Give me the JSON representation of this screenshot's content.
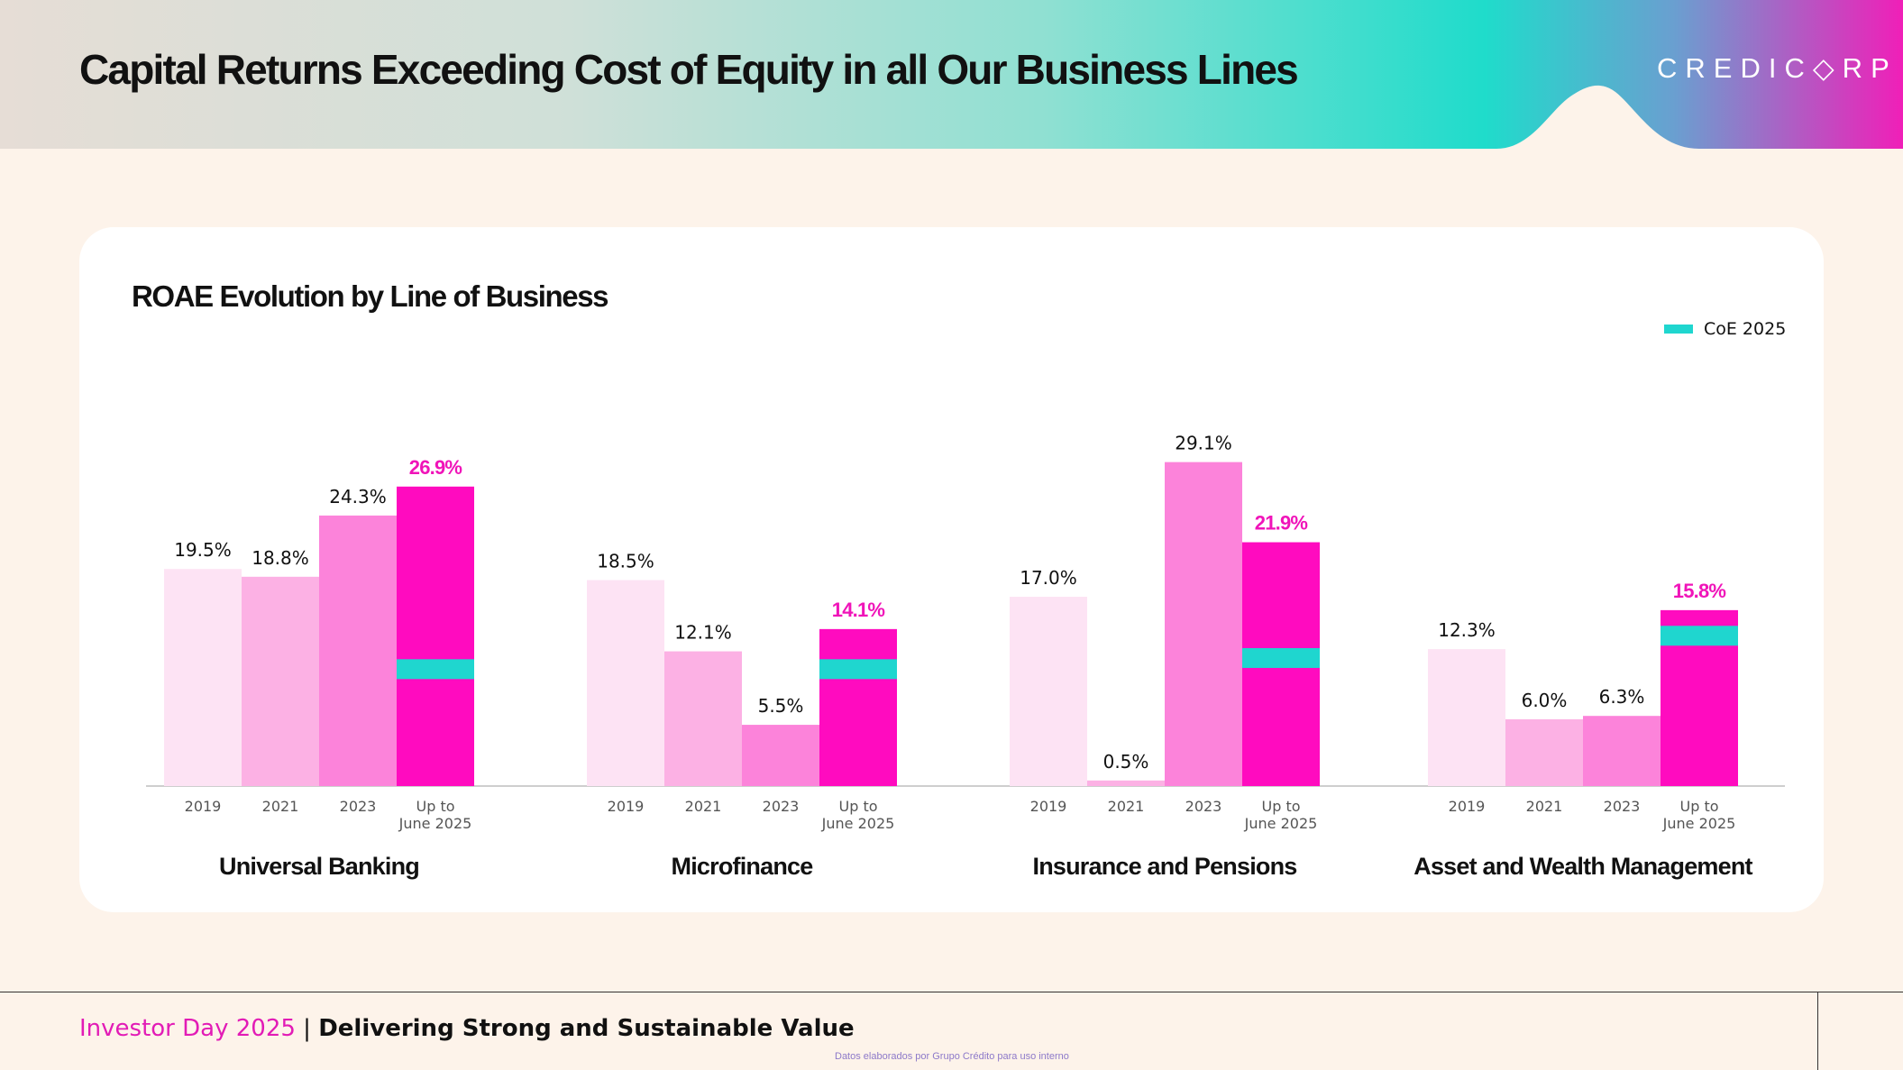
{
  "header": {
    "title": "Capital Returns Exceeding Cost of Equity in all Our Business Lines",
    "logo": "CREDIC◇RP"
  },
  "footer": {
    "event": "Investor Day 2025",
    "separator": " | ",
    "tagline": "Delivering Strong and Sustainable Value",
    "note": "Datos elaborados por Grupo Crédito para uso interno"
  },
  "colors": {
    "y2019": "#fde3f4",
    "y2021": "#fcb1e4",
    "y2023": "#fc83da",
    "y2025": "#ff0bbf",
    "coe": "#1fd6cf",
    "highlight_label": "#f014b9",
    "header_pink": "#f01fb8"
  },
  "chart_data": {
    "type": "bar",
    "title": "ROAE Evolution by Line of Business",
    "legend": {
      "label": "CoE 2025",
      "position": "top-right"
    },
    "categories": [
      "2019",
      "2021",
      "2023",
      "Up to\nJune 2025"
    ],
    "ylim": [
      0,
      30
    ],
    "groups": [
      {
        "name": "Universal Banking",
        "values": [
          19.5,
          18.8,
          24.3,
          26.9
        ],
        "labels": [
          "19.5%",
          "18.8%",
          "24.3%",
          "26.9%"
        ],
        "coe": 10.5
      },
      {
        "name": "Microfinance",
        "values": [
          18.5,
          12.1,
          5.5,
          14.1
        ],
        "labels": [
          "18.5%",
          "12.1%",
          "5.5%",
          "14.1%"
        ],
        "coe": 10.5
      },
      {
        "name": "Insurance and Pensions",
        "values": [
          17.0,
          0.5,
          29.1,
          21.9
        ],
        "labels": [
          "17.0%",
          "0.5%",
          "29.1%",
          "21.9%"
        ],
        "coe": 11.5
      },
      {
        "name": "Asset and Wealth Management",
        "values": [
          12.3,
          6.0,
          6.3,
          15.8
        ],
        "labels": [
          "12.3%",
          "6.0%",
          "6.3%",
          "15.8%"
        ],
        "coe": 13.5
      }
    ]
  }
}
